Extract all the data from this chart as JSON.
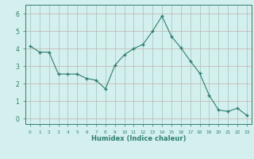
{
  "x": [
    0,
    1,
    2,
    3,
    4,
    5,
    6,
    7,
    8,
    9,
    10,
    11,
    12,
    13,
    14,
    15,
    16,
    17,
    18,
    19,
    20,
    21,
    22,
    23
  ],
  "y": [
    4.15,
    3.8,
    3.8,
    2.55,
    2.55,
    2.55,
    2.3,
    2.2,
    1.7,
    3.05,
    3.65,
    4.0,
    4.25,
    5.0,
    5.85,
    4.7,
    4.05,
    3.3,
    2.6,
    1.35,
    0.5,
    0.42,
    0.6,
    0.2
  ],
  "line_color": "#2e7d6e",
  "marker": "+",
  "marker_size": 3,
  "bg_color": "#d4f0ee",
  "grid_color_h": "#c8b8b8",
  "grid_color_v": "#a8c8c4",
  "tick_color": "#2e7d6e",
  "xlabel": "Humidex (Indice chaleur)",
  "xlim": [
    -0.5,
    23.5
  ],
  "ylim": [
    -0.3,
    6.5
  ],
  "yticks": [
    0,
    1,
    2,
    3,
    4,
    5,
    6
  ],
  "xticks": [
    0,
    1,
    2,
    3,
    4,
    5,
    6,
    7,
    8,
    9,
    10,
    11,
    12,
    13,
    14,
    15,
    16,
    17,
    18,
    19,
    20,
    21,
    22,
    23
  ],
  "figwidth": 3.2,
  "figheight": 2.0,
  "dpi": 100
}
